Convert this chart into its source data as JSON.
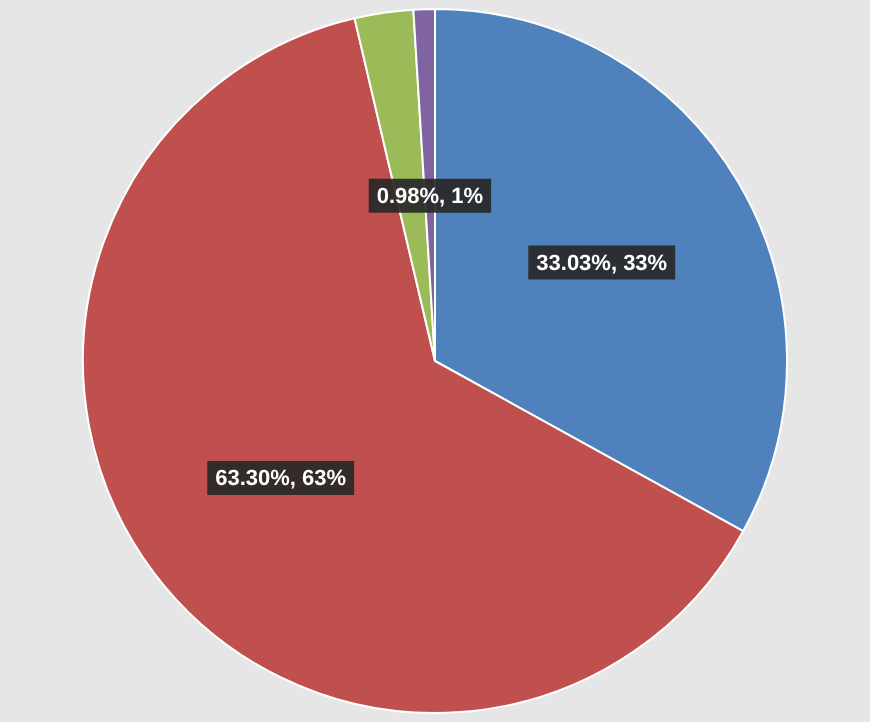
{
  "chart_data": {
    "type": "pie",
    "categories": [
      null,
      null,
      null,
      null
    ],
    "values": [
      33.03,
      63.3,
      2.69,
      0.98
    ],
    "colors": [
      "#4f81bd",
      "#c0504d",
      "#9bbb59",
      "#8064a2"
    ],
    "value_labels": [
      "33.03%, 33%",
      "63.30%, 63%",
      null,
      "0.98%, 1%"
    ],
    "legend": false
  }
}
